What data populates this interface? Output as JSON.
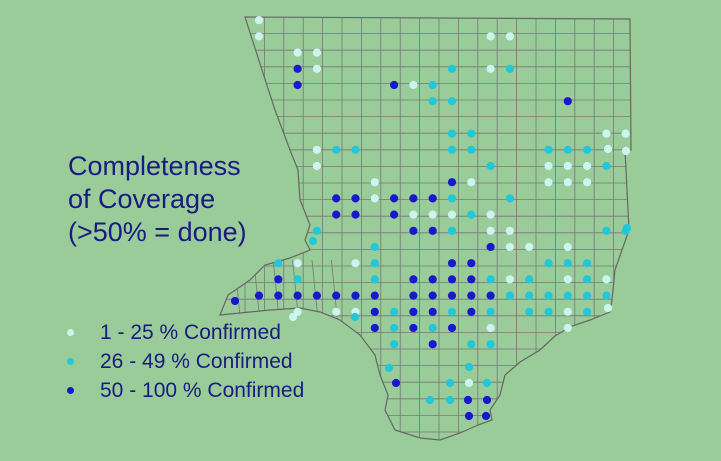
{
  "title": {
    "line1": "Completeness",
    "line2": "of Coverage",
    "line3": "(>50% = done)"
  },
  "colors": {
    "background": "#99CC99",
    "outline": "#666666",
    "text": "#1a1a80",
    "low": "#CCF5F0",
    "mid": "#22C8D8",
    "high": "#1818CC"
  },
  "legend": [
    {
      "label": "1 - 25 % Confirmed",
      "level": "low"
    },
    {
      "label": "26 - 49 % Confirmed",
      "level": "mid"
    },
    {
      "label": "50 - 100 % Confirmed",
      "level": "high"
    }
  ],
  "grid": {
    "cols": 20,
    "rows": 22
  },
  "blocks": [
    [
      0,
      1,
      "low"
    ],
    [
      0,
      2,
      "low"
    ],
    [
      2,
      3,
      "low"
    ],
    [
      3,
      3,
      "low"
    ],
    [
      2,
      4,
      "high"
    ],
    [
      3,
      4,
      "low"
    ],
    [
      2,
      5,
      "high"
    ],
    [
      12,
      2,
      "low"
    ],
    [
      13,
      2,
      "low"
    ],
    [
      10,
      4,
      "mid"
    ],
    [
      12,
      4,
      "low"
    ],
    [
      13,
      4,
      "mid"
    ],
    [
      7,
      5,
      "high"
    ],
    [
      8,
      5,
      "low"
    ],
    [
      9,
      5,
      "mid"
    ],
    [
      9,
      6,
      "mid"
    ],
    [
      10,
      6,
      "mid"
    ],
    [
      16,
      6,
      "high"
    ],
    [
      10,
      8,
      "mid"
    ],
    [
      11,
      8,
      "mid"
    ],
    [
      19,
      8,
      "low"
    ],
    [
      18,
      8,
      "low"
    ],
    [
      3,
      9,
      "low"
    ],
    [
      4,
      9,
      "mid"
    ],
    [
      5,
      9,
      "mid"
    ],
    [
      10,
      9,
      "mid"
    ],
    [
      11,
      9,
      "mid"
    ],
    [
      15,
      9,
      "mid"
    ],
    [
      16,
      9,
      "mid"
    ],
    [
      17,
      9,
      "mid"
    ],
    [
      3,
      10,
      "low"
    ],
    [
      12,
      10,
      "mid"
    ],
    [
      15,
      10,
      "low"
    ],
    [
      16,
      10,
      "low"
    ],
    [
      17,
      10,
      "low"
    ],
    [
      18,
      10,
      "mid"
    ],
    [
      6,
      11,
      "low"
    ],
    [
      10,
      11,
      "high"
    ],
    [
      11,
      11,
      "low"
    ],
    [
      15,
      11,
      "low"
    ],
    [
      16,
      11,
      "low"
    ],
    [
      17,
      11,
      "low"
    ],
    [
      4,
      12,
      "high"
    ],
    [
      5,
      12,
      "high"
    ],
    [
      6,
      12,
      "low"
    ],
    [
      7,
      12,
      "high"
    ],
    [
      8,
      12,
      "high"
    ],
    [
      9,
      12,
      "high"
    ],
    [
      10,
      12,
      "mid"
    ],
    [
      13,
      12,
      "mid"
    ],
    [
      4,
      13,
      "high"
    ],
    [
      5,
      13,
      "high"
    ],
    [
      7,
      13,
      "high"
    ],
    [
      8,
      13,
      "low"
    ],
    [
      9,
      13,
      "low"
    ],
    [
      10,
      13,
      "low"
    ],
    [
      11,
      13,
      "mid"
    ],
    [
      12,
      13,
      "low"
    ],
    [
      3,
      14,
      "mid"
    ],
    [
      8,
      14,
      "high"
    ],
    [
      9,
      14,
      "high"
    ],
    [
      10,
      14,
      "mid"
    ],
    [
      12,
      14,
      "low"
    ],
    [
      13,
      14,
      "low"
    ],
    [
      18,
      14,
      "mid"
    ],
    [
      19,
      14,
      "mid"
    ],
    [
      6,
      15,
      "mid"
    ],
    [
      12,
      15,
      "high"
    ],
    [
      13,
      15,
      "low"
    ],
    [
      14,
      15,
      "low"
    ],
    [
      16,
      15,
      "low"
    ],
    [
      1,
      16,
      "mid"
    ],
    [
      2,
      16,
      "low"
    ],
    [
      5,
      16,
      "low"
    ],
    [
      6,
      16,
      "mid"
    ],
    [
      10,
      16,
      "high"
    ],
    [
      11,
      16,
      "high"
    ],
    [
      15,
      16,
      "mid"
    ],
    [
      16,
      16,
      "mid"
    ],
    [
      17,
      16,
      "mid"
    ],
    [
      1,
      17,
      "high"
    ],
    [
      2,
      17,
      "mid"
    ],
    [
      6,
      17,
      "mid"
    ],
    [
      8,
      17,
      "high"
    ],
    [
      9,
      17,
      "high"
    ],
    [
      10,
      17,
      "high"
    ],
    [
      11,
      17,
      "high"
    ],
    [
      12,
      17,
      "mid"
    ],
    [
      13,
      17,
      "low"
    ],
    [
      14,
      17,
      "mid"
    ],
    [
      16,
      17,
      "low"
    ],
    [
      17,
      17,
      "mid"
    ],
    [
      18,
      17,
      "low"
    ],
    [
      0,
      18,
      "high"
    ],
    [
      1,
      18,
      "high"
    ],
    [
      2,
      18,
      "high"
    ],
    [
      3,
      18,
      "high"
    ],
    [
      4,
      18,
      "high"
    ],
    [
      5,
      18,
      "high"
    ],
    [
      6,
      18,
      "high"
    ],
    [
      8,
      18,
      "high"
    ],
    [
      9,
      18,
      "high"
    ],
    [
      10,
      18,
      "high"
    ],
    [
      11,
      18,
      "high"
    ],
    [
      12,
      18,
      "high"
    ],
    [
      13,
      18,
      "mid"
    ],
    [
      14,
      18,
      "mid"
    ],
    [
      15,
      18,
      "mid"
    ],
    [
      16,
      18,
      "mid"
    ],
    [
      17,
      18,
      "mid"
    ],
    [
      18,
      18,
      "mid"
    ],
    [
      2,
      19,
      "low"
    ],
    [
      4,
      19,
      "low"
    ],
    [
      5,
      19,
      "low"
    ],
    [
      6,
      19,
      "high"
    ],
    [
      7,
      19,
      "mid"
    ],
    [
      8,
      19,
      "high"
    ],
    [
      9,
      19,
      "high"
    ],
    [
      10,
      19,
      "mid"
    ],
    [
      11,
      19,
      "high"
    ],
    [
      12,
      19,
      "mid"
    ],
    [
      14,
      19,
      "mid"
    ],
    [
      15,
      19,
      "mid"
    ],
    [
      16,
      19,
      "low"
    ],
    [
      17,
      19,
      "mid"
    ],
    [
      6,
      20,
      "high"
    ],
    [
      7,
      20,
      "mid"
    ],
    [
      8,
      20,
      "high"
    ],
    [
      9,
      20,
      "mid"
    ],
    [
      10,
      20,
      "high"
    ],
    [
      12,
      20,
      "low"
    ],
    [
      16,
      20,
      "low"
    ],
    [
      7,
      21,
      "mid"
    ],
    [
      9,
      21,
      "high"
    ],
    [
      11,
      21,
      "mid"
    ],
    [
      12,
      21,
      "mid"
    ]
  ],
  "extra_blocks": [
    [
      389,
      368,
      "mid"
    ],
    [
      396,
      383,
      "high"
    ],
    [
      469,
      367,
      "mid"
    ],
    [
      450,
      383,
      "mid"
    ],
    [
      469,
      383,
      "low"
    ],
    [
      487,
      383,
      "mid"
    ],
    [
      450,
      400,
      "mid"
    ],
    [
      468,
      400,
      "high"
    ],
    [
      487,
      400,
      "high"
    ],
    [
      469,
      416,
      "high"
    ],
    [
      486,
      416,
      "high"
    ],
    [
      430,
      400,
      "mid"
    ],
    [
      313,
      241,
      "mid"
    ],
    [
      235,
      301,
      "high"
    ],
    [
      293,
      317,
      "low"
    ],
    [
      355,
      317,
      "mid"
    ],
    [
      608,
      308,
      "low"
    ],
    [
      627,
      228,
      "mid"
    ],
    [
      626,
      151,
      "low"
    ],
    [
      608,
      149,
      "low"
    ]
  ]
}
